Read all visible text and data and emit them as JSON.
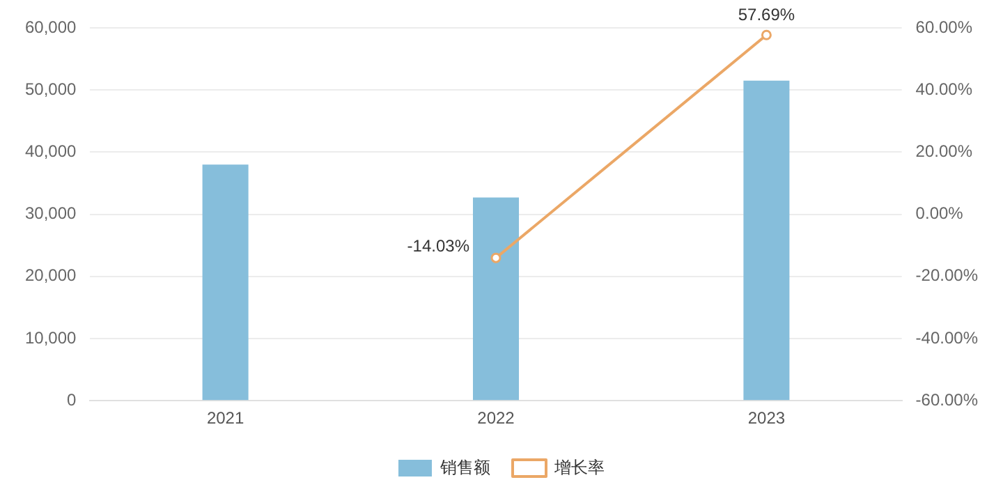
{
  "chart_data": {
    "type": "bar",
    "categories": [
      "2021",
      "2022",
      "2023"
    ],
    "series": [
      {
        "name": "销售额",
        "color": "#86bedb",
        "values": [
          38000,
          32700,
          51500
        ]
      },
      {
        "name": "增长率",
        "type": "line",
        "axis": "y2",
        "color": "#eba766",
        "marker": "circle",
        "values": [
          null,
          -14.03,
          57.69
        ],
        "value_labels": [
          null,
          "-14.03%",
          "57.69%"
        ]
      }
    ],
    "ylim": [
      0,
      60000
    ],
    "yticks": [
      {
        "value": 0,
        "label": "0"
      },
      {
        "value": 10000,
        "label": "10,000"
      },
      {
        "value": 20000,
        "label": "20,000"
      },
      {
        "value": 30000,
        "label": "30,000"
      },
      {
        "value": 40000,
        "label": "40,000"
      },
      {
        "value": 50000,
        "label": "50,000"
      },
      {
        "value": 60000,
        "label": "60,000"
      }
    ],
    "y2lim": [
      -60,
      60
    ],
    "y2ticks": [
      {
        "value": -60,
        "label": "-60.00%"
      },
      {
        "value": -40,
        "label": "-40.00%"
      },
      {
        "value": -20,
        "label": "-20.00%"
      },
      {
        "value": 0,
        "label": "0.00%"
      },
      {
        "value": 20,
        "label": "20.00%"
      },
      {
        "value": 40,
        "label": "40.00%"
      },
      {
        "value": 60,
        "label": "60.00%"
      }
    ],
    "grid": "y",
    "legend": "bottom"
  }
}
